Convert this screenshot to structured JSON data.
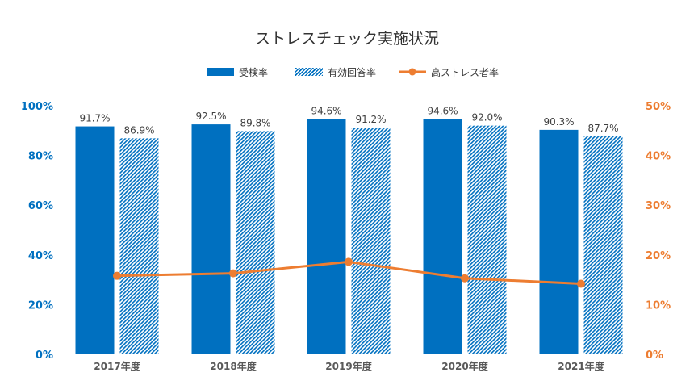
{
  "chart_data": {
    "type": "bar",
    "title": "ストレスチェック実施状況",
    "categories": [
      "2017年度",
      "2018年度",
      "2019年度",
      "2020年度",
      "2021年度"
    ],
    "series": [
      {
        "name": "受検率",
        "type": "bar",
        "axis": "left",
        "color": "#0070C0",
        "pattern": "solid",
        "values": [
          91.7,
          92.5,
          94.6,
          94.6,
          90.3
        ],
        "labels": [
          "91.7%",
          "92.5%",
          "94.6%",
          "94.6%",
          "90.3%"
        ]
      },
      {
        "name": "有効回答率",
        "type": "bar",
        "axis": "left",
        "color": "#0070C0",
        "pattern": "diagonal-hatch",
        "values": [
          86.9,
          89.8,
          91.2,
          92.0,
          87.7
        ],
        "labels": [
          "86.9%",
          "89.8%",
          "91.2%",
          "92.0%",
          "87.7%"
        ]
      },
      {
        "name": "高ストレス者率",
        "type": "line",
        "axis": "right",
        "color": "#ED7D31",
        "marker": "circle",
        "values": [
          15.8,
          16.3,
          18.6,
          15.3,
          14.2
        ]
      }
    ],
    "y_left": {
      "min": 0,
      "max": 100,
      "ticks": [
        "0%",
        "20%",
        "40%",
        "60%",
        "80%",
        "100%"
      ],
      "color": "#0070C0"
    },
    "y_right": {
      "min": 0,
      "max": 50,
      "ticks": [
        "0%",
        "10%",
        "20%",
        "30%",
        "40%",
        "50%"
      ],
      "color": "#ED7D31"
    },
    "grid": false,
    "legend_position": "top"
  }
}
